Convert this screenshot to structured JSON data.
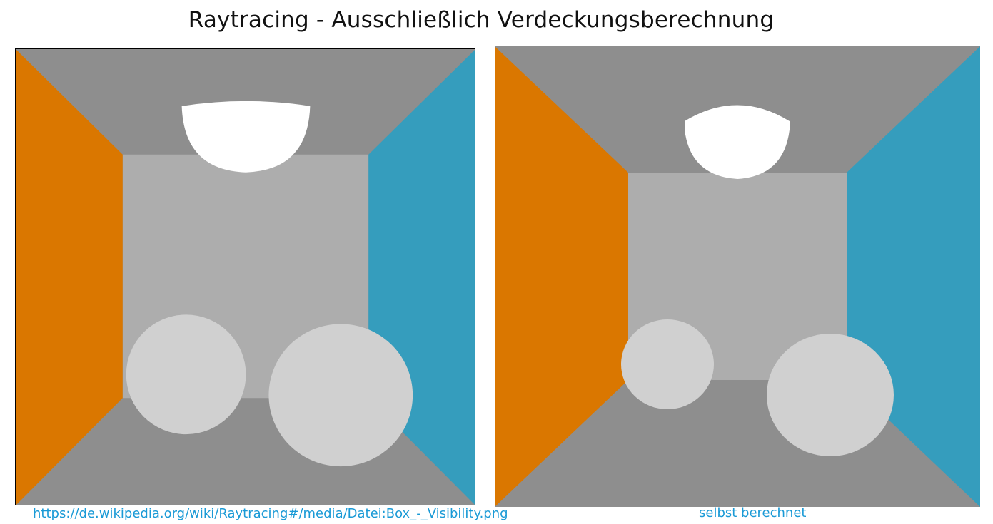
{
  "title": "Raytracing - Ausschließlich Verdeckungsberechnung",
  "colors": {
    "floor_ceiling": "#8e8e8e",
    "back_wall": "#adadad",
    "left_wall": "#da7700",
    "right_wall": "#359dbd",
    "spheres": "#d0d0d0",
    "lamp": "#ffffff",
    "caption": "#1a9ad6"
  },
  "panels": {
    "left": {
      "caption": "https://de.wikipedia.org/wiki/Raytracing#/media/Datei:Box_-_Visibility.png"
    },
    "right": {
      "caption": "selbst berechnet"
    }
  }
}
